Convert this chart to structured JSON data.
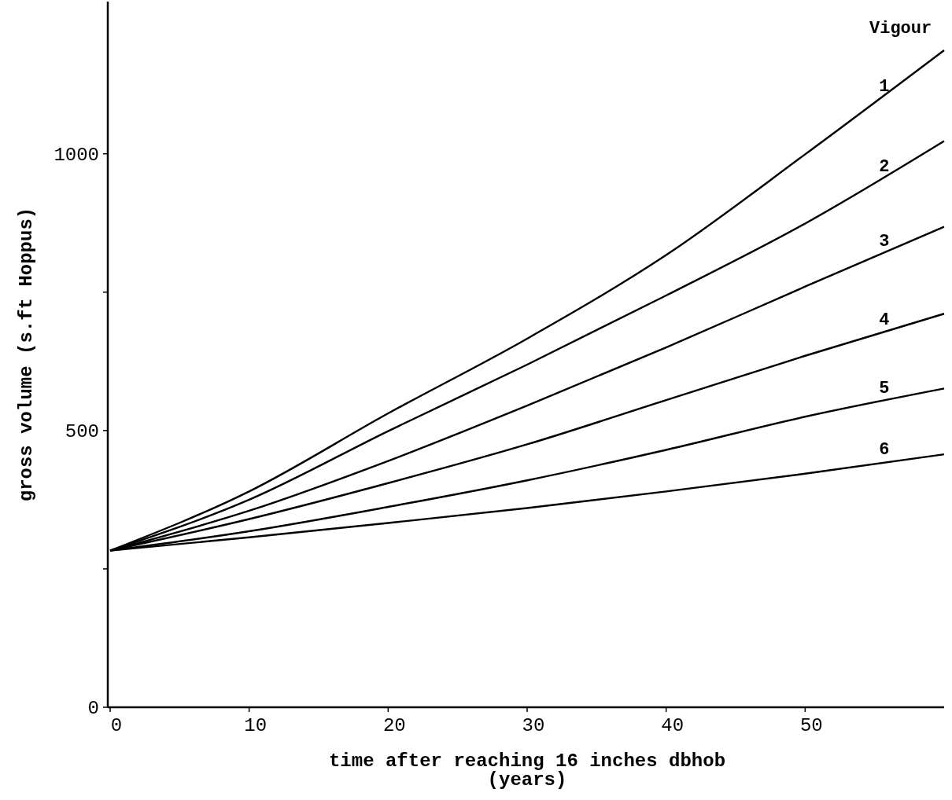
{
  "chart_data": {
    "type": "line",
    "xlabel": "time after reaching 16 inches dbhob\n(years)",
    "ylabel": "gross volume (s.ft Hoppus)",
    "legend_title": "Vigour",
    "x": [
      0,
      10,
      20,
      30,
      40,
      50,
      60
    ],
    "xlim": [
      0,
      60
    ],
    "xticks": [
      0,
      10,
      20,
      30,
      40,
      50
    ],
    "ylim": [
      0,
      1275
    ],
    "yticks": [
      0,
      {
        "value": 250,
        "label": null
      },
      500,
      {
        "value": 750,
        "label": null
      },
      1000
    ],
    "grid": false,
    "marker": "none",
    "line_style": "solid",
    "series": [
      {
        "name": "1",
        "color": "#000000",
        "values": [
          283,
          390,
          531,
          666,
          817,
          999,
          1187
        ]
      },
      {
        "name": "2",
        "color": "#000000",
        "values": [
          283,
          375,
          499,
          619,
          744,
          874,
          1023
        ]
      },
      {
        "name": "3",
        "color": "#000000",
        "values": [
          283,
          355,
          445,
          545,
          650,
          760,
          868
        ]
      },
      {
        "name": "4",
        "color": "#000000",
        "values": [
          283,
          340,
          405,
          475,
          555,
          635,
          711
        ]
      },
      {
        "name": "5",
        "color": "#000000",
        "values": [
          283,
          318,
          362,
          410,
          465,
          525,
          576
        ]
      },
      {
        "name": "6",
        "color": "#000000",
        "values": [
          283,
          307,
          333,
          360,
          390,
          422,
          457
        ]
      }
    ]
  }
}
